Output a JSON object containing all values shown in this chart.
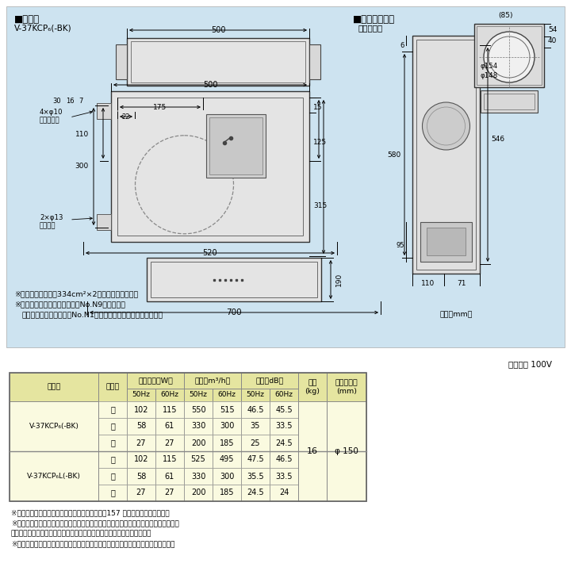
{
  "bg_light_blue": "#d6e8f5",
  "bg_white": "#ffffff",
  "header_bg": "#e8e8b0",
  "row_bg": "#fafae0",
  "border_color": "#555555",
  "title1": "■外形図",
  "model1": "V-37KCP₆(-BK)",
  "title2": "■ダクト接続口",
  "duct_sub": "（付属品）",
  "unit": "（単位mm）",
  "power": "電源電圧 100V",
  "note1": "※グリル開口面積は334cm²×2枚（フィルター部）",
  "note2": "※色調は（ホワイト）マンセルNo.N9（近似色）",
  "note3": "　（ブラック）マンセルNo.N1（近似色）（但し半ツヤ相当品）",
  "footer1": "※電動給気シャッターとの結線方法については、157 ページをご覧ください。",
  "footer2": "※電動給気シャッター連動出力コードの先端には絶縁用端子が付いています。使用の際",
  "footer3": "　はコードを途中から切断して電動給気シャッターに接続してください。",
  "footer4": "※レンジフードファンの設置にあたっては火災予防条例をはじめ法規制があります。",
  "col_header1": "形　名",
  "col_header2": "ノッチ",
  "col_header3": "消費電力（W）",
  "col_header4": "風量（m³/h）",
  "col_header5": "騒音（dB）",
  "col_header6": "質量\n(kg)",
  "col_header7": "接続パイプ\n(mm)",
  "model_a": "V-37KCP₆(-BK)",
  "model_b": "V-37KCP₆L(-BK)",
  "notch_strong": "強",
  "notch_mid": "中",
  "notch_weak": "弱",
  "rows_a": [
    [
      "強",
      "102",
      "115",
      "550",
      "515",
      "46.5",
      "45.5"
    ],
    [
      "中",
      "58",
      "61",
      "330",
      "300",
      "35",
      "33.5"
    ],
    [
      "弱",
      "27",
      "27",
      "200",
      "185",
      "25",
      "24.5"
    ]
  ],
  "rows_b": [
    [
      "強",
      "102",
      "115",
      "525",
      "495",
      "47.5",
      "46.5"
    ],
    [
      "中",
      "58",
      "61",
      "330",
      "300",
      "35.5",
      "33.5"
    ],
    [
      "弱",
      "27",
      "27",
      "200",
      "185",
      "24.5",
      "24"
    ]
  ],
  "mass": "16",
  "pipe": "φ 150"
}
